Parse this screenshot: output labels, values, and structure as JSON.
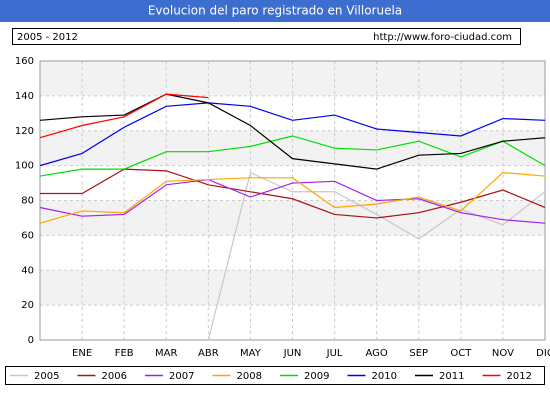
{
  "chart_data": {
    "type": "line",
    "title": "Evolucion del paro registrado en Villoruela",
    "subtitle": "2005 - 2012",
    "source": "http://www.foro-ciudad.com",
    "categories": [
      null,
      "ENE",
      "FEB",
      "MAR",
      "ABR",
      "MAY",
      "JUN",
      "JUL",
      "AGO",
      "SEP",
      "OCT",
      "NOV",
      "DIC"
    ],
    "ylim": [
      0,
      160
    ],
    "yticks": [
      0,
      20,
      40,
      60,
      80,
      100,
      120,
      140,
      160
    ],
    "grid": true,
    "series": [
      {
        "name": "2005",
        "color": "#c8c8c8",
        "values": [
          null,
          null,
          null,
          null,
          0,
          96,
          85,
          85,
          72,
          58,
          75,
          66,
          85
        ]
      },
      {
        "name": "2006",
        "color": "#aa1111",
        "values": [
          84,
          84,
          98,
          97,
          89,
          85,
          81,
          72,
          70,
          73,
          79,
          86,
          76
        ]
      },
      {
        "name": "2007",
        "color": "#a020f0",
        "values": [
          76,
          71,
          72,
          89,
          92,
          82,
          90,
          91,
          80,
          81,
          73,
          69,
          67
        ]
      },
      {
        "name": "2008",
        "color": "#ffa500",
        "values": [
          67,
          74,
          73,
          91,
          92,
          93,
          93,
          76,
          78,
          82,
          74,
          96,
          94
        ]
      },
      {
        "name": "2009",
        "color": "#00dd00",
        "values": [
          94,
          98,
          98,
          108,
          108,
          111,
          117,
          110,
          109,
          114,
          105,
          114,
          100
        ]
      },
      {
        "name": "2010",
        "color": "#0000ee",
        "values": [
          100,
          107,
          122,
          134,
          136,
          134,
          126,
          129,
          121,
          119,
          117,
          127,
          126
        ]
      },
      {
        "name": "2011",
        "color": "#000000",
        "values": [
          126,
          128,
          129,
          141,
          136,
          123,
          104,
          101,
          98,
          106,
          107,
          114,
          116
        ]
      },
      {
        "name": "2012",
        "color": "#ff0000",
        "values": [
          116,
          123,
          128,
          141,
          139,
          null,
          null,
          null,
          null,
          null,
          null,
          null,
          null
        ]
      }
    ]
  }
}
